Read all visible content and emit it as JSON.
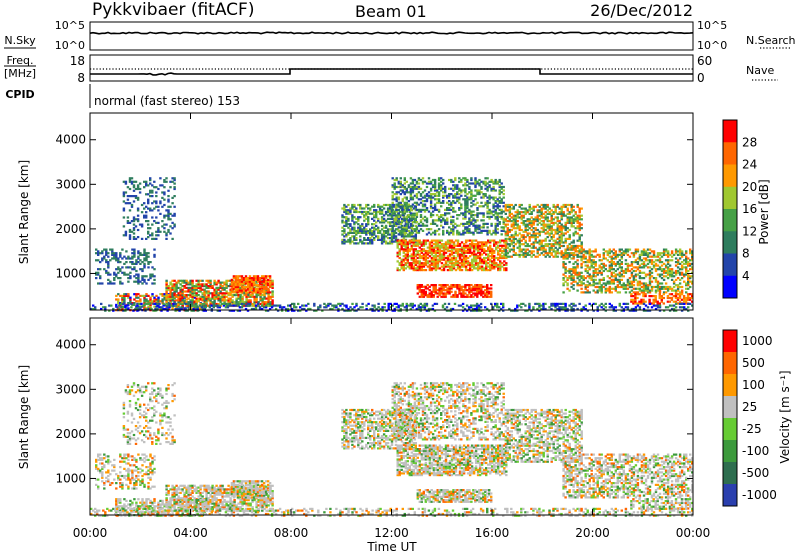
{
  "header": {
    "station": "Pykkvibaer (fitACF)",
    "beam": "Beam 01",
    "date": "26/Dec/2012"
  },
  "noise_panel": {
    "left_label": "N.Sky",
    "left_ticks": [
      "10^5",
      "10^0"
    ],
    "right_label": "N.Search",
    "right_ticks": [
      "10^5",
      "10^0"
    ]
  },
  "freq_panel": {
    "left_label_1": "Freq.",
    "left_label_2": "[MHz]",
    "left_ticks": [
      "18",
      "8"
    ],
    "right_label": "Nave",
    "right_ticks": [
      "60",
      "0"
    ]
  },
  "cpid_panel": {
    "label": "CPID",
    "text": "normal (fast stereo) 153"
  },
  "chart_data": [
    {
      "type": "heatmap",
      "title": "",
      "xlabel": "",
      "ylabel": "Slant Range [km]",
      "x_ticks": [
        "00:00",
        "04:00",
        "08:00",
        "12:00",
        "16:00",
        "20:00",
        "00:00"
      ],
      "xlim_hours": [
        0,
        24
      ],
      "y_ticks": [
        1000,
        2000,
        3000,
        4000
      ],
      "ylim": [
        180,
        4600
      ],
      "colorbar_label": "Power [dB]",
      "colorbar_ticks": [
        4,
        8,
        12,
        16,
        20,
        24,
        28
      ],
      "colorbar_range": [
        0,
        30
      ],
      "colors": [
        "#0000ff",
        "#2244aa",
        "#2e7d5e",
        "#45a045",
        "#a0c830",
        "#ff9900",
        "#ff6600",
        "#ff0000"
      ]
    },
    {
      "type": "heatmap",
      "title": "",
      "xlabel": "Time UT",
      "ylabel": "Slant Range [km]",
      "x_ticks": [
        "00:00",
        "04:00",
        "08:00",
        "12:00",
        "16:00",
        "20:00",
        "00:00"
      ],
      "xlim_hours": [
        0,
        24
      ],
      "y_ticks": [
        1000,
        2000,
        3000,
        4000
      ],
      "ylim": [
        180,
        4600
      ],
      "colorbar_label": "Velocity [m s⁻¹]",
      "colorbar_ticks": [
        "1000",
        "500",
        "100",
        "25",
        "-25",
        "-100",
        "-500",
        "-1000"
      ],
      "colors": [
        "#2a3fae",
        "#2e6e4f",
        "#3c9a3c",
        "#66cc33",
        "#c0c0c0",
        "#ff9900",
        "#ff6600",
        "#ff0000"
      ]
    }
  ]
}
